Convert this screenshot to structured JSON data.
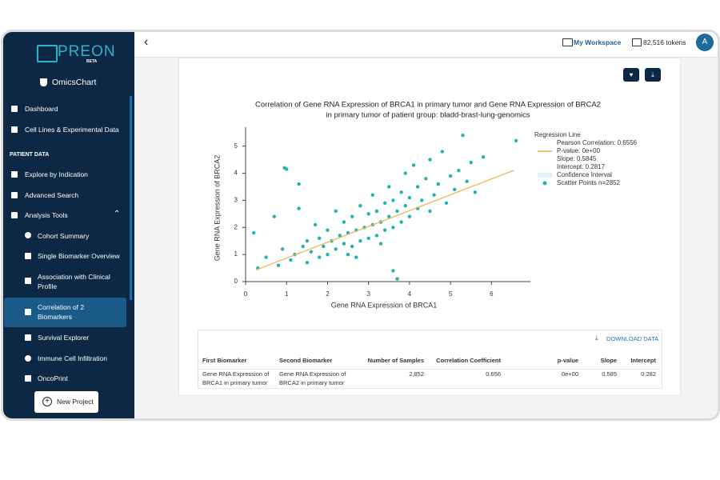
{
  "sidebar": {
    "logo": "PREON",
    "badge": "BETA",
    "app": "OmicsChart",
    "items": [
      "Dashboard",
      "Cell Lines & Experimental Data"
    ],
    "section": "PATIENT DATA",
    "patient_items": [
      "Explore by Indication",
      "Advanced Search",
      "Analysis Tools"
    ],
    "analysis_items": [
      "Cohort Summary",
      "Single Biomarker Overview",
      "Association with Clinical Profile",
      "Correlation of 2 Biomarkers",
      "Survival Explorer",
      "Immune Cell Infiltration",
      "OncoPrint"
    ],
    "button": "New Project"
  },
  "topbar": {
    "workspace": "My Workspace",
    "tokens": "82,516 tokens",
    "avatar": "A"
  },
  "chart_data": {
    "type": "scatter",
    "title": "Correlation of Gene RNA Expression of BRCA1 in primary tumor and Gene RNA Expression of BRCA2",
    "subtitle": "in primary tumor of patient group: bladd-brast-lung-genomics",
    "x_label": "Gene RNA Expression of BRCA1",
    "y_label": "Gene RNA Expression of BRCA2",
    "xlim": [
      0,
      6.95
    ],
    "ylim": [
      0,
      5.7
    ],
    "xticks": [
      0,
      1,
      2,
      3,
      4,
      5,
      6
    ],
    "yticks": [
      0,
      1,
      2,
      3,
      4,
      5
    ],
    "series": [
      {
        "name": "Scatter Points n=2852",
        "color": "#22b2b0",
        "x": [
          0.2,
          0.3,
          0.5,
          0.7,
          0.8,
          0.9,
          0.95,
          1.0,
          1.1,
          1.2,
          1.3,
          1.4,
          1.5,
          1.5,
          1.6,
          1.7,
          1.8,
          1.8,
          1.9,
          2.0,
          2.0,
          2.1,
          2.2,
          2.2,
          2.3,
          2.4,
          2.4,
          2.5,
          2.5,
          2.6,
          2.6,
          2.7,
          2.8,
          2.8,
          2.9,
          3.0,
          3.0,
          3.1,
          3.1,
          3.2,
          3.2,
          3.3,
          3.3,
          3.4,
          3.4,
          3.5,
          3.5,
          3.6,
          3.6,
          3.7,
          3.7,
          3.8,
          3.8,
          3.9,
          3.9,
          4.0,
          4.0,
          4.1,
          4.2,
          4.2,
          4.3,
          4.4,
          4.5,
          4.5,
          4.6,
          4.7,
          4.8,
          4.9,
          5.0,
          5.1,
          5.2,
          5.3,
          5.4,
          5.5,
          5.6,
          5.8,
          6.6,
          1.3,
          2.7,
          3.6
        ],
        "values": [
          1.8,
          0.5,
          0.9,
          2.4,
          0.6,
          1.2,
          4.2,
          4.15,
          0.8,
          1.0,
          2.7,
          1.3,
          0.7,
          1.5,
          1.1,
          2.1,
          0.9,
          1.6,
          1.3,
          1.9,
          1.0,
          1.5,
          2.6,
          1.2,
          1.7,
          1.4,
          2.2,
          1.0,
          1.8,
          2.4,
          1.3,
          1.9,
          1.5,
          2.8,
          2.0,
          1.6,
          2.5,
          2.1,
          3.2,
          1.7,
          2.6,
          2.2,
          1.4,
          2.9,
          1.9,
          2.4,
          3.5,
          2.0,
          3.0,
          0.1,
          2.6,
          3.3,
          2.2,
          2.8,
          4.0,
          2.4,
          3.1,
          4.3,
          2.7,
          3.5,
          3.0,
          3.8,
          2.6,
          4.5,
          3.2,
          3.6,
          4.8,
          2.9,
          3.9,
          3.4,
          4.1,
          5.4,
          3.7,
          4.4,
          3.3,
          4.6,
          5.2,
          3.6,
          0.9,
          0.4
        ]
      }
    ],
    "regression": {
      "name": "Regression Line",
      "color": "#f0b44c",
      "stats": [
        "Pearson Correlation: 0.6556",
        "P-value: 0e+00",
        "Slope: 0.5845",
        "Intercept: 0.2817"
      ],
      "x": [
        0.25,
        6.55
      ],
      "values": [
        0.43,
        4.11
      ]
    },
    "confidence": {
      "name": "Confidence Interval",
      "color": "#dcf2f6"
    }
  },
  "table": {
    "download": "DOWNLOAD DATA",
    "headers": [
      "First Biomarker",
      "Second Biomarker",
      "Number of Samples",
      "Correlation Coefficient",
      "p-value",
      "Slope",
      "Intercept"
    ],
    "rows": [
      [
        "Gene RNA Expression of BRCA1 in primary tumor",
        "Gene RNA Expression of BRCA2 in primary tumor",
        "2,852",
        "0.656",
        "0e+00",
        "0.585",
        "0.282"
      ]
    ]
  }
}
